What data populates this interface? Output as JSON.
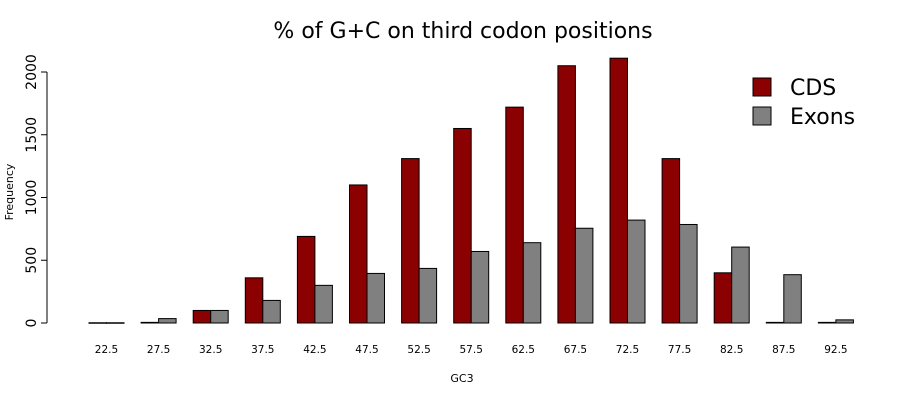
{
  "chart_data": {
    "type": "bar",
    "title": "% of G+C on third codon positions",
    "xlabel": "GC3",
    "ylabel": "Frequency",
    "ylim": [
      0,
      2100
    ],
    "yticks": [
      "0",
      "500",
      "1000",
      "1500",
      "2000"
    ],
    "categories": [
      "22.5",
      "27.5",
      "32.5",
      "37.5",
      "42.5",
      "47.5",
      "52.5",
      "57.5",
      "62.5",
      "67.5",
      "72.5",
      "77.5",
      "82.5",
      "87.5",
      "92.5"
    ],
    "series": [
      {
        "name": "CDS",
        "color": "#8b0000",
        "values": [
          2,
          5,
          100,
          360,
          690,
          1100,
          1310,
          1550,
          1720,
          2050,
          2110,
          1310,
          400,
          5,
          5
        ]
      },
      {
        "name": "Exons",
        "color": "#808080",
        "values": [
          2,
          35,
          100,
          180,
          300,
          395,
          435,
          570,
          640,
          755,
          820,
          785,
          605,
          385,
          25
        ]
      }
    ],
    "grid": false,
    "legend_position": "top-right"
  }
}
